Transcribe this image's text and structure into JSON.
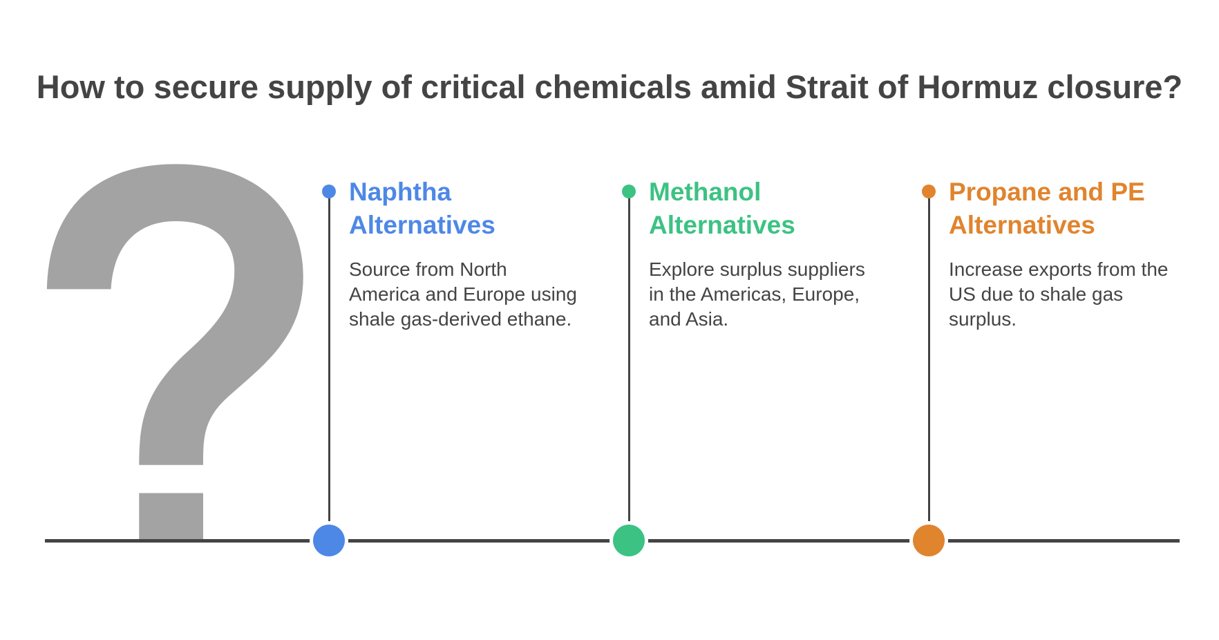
{
  "title": "How to secure supply of critical chemicals amid Strait of Hormuz closure?",
  "icon": "question-mark-icon",
  "colors": {
    "line": "#444444",
    "question_mark": "#a3a3a3"
  },
  "items": [
    {
      "heading_line1": "Naphtha",
      "heading_line2": "Alternatives",
      "description": "Source from North America and Europe using shale gas-derived ethane.",
      "color": "#4e88e6"
    },
    {
      "heading_line1": "Methanol",
      "heading_line2": "Alternatives",
      "description": "Explore surplus suppliers in the Americas, Europe, and Asia.",
      "color": "#3cc283"
    },
    {
      "heading_line1": "Propane and PE",
      "heading_line2": "Alternatives",
      "description": "Increase exports from the US due to shale gas surplus.",
      "color": "#e0842e"
    }
  ]
}
